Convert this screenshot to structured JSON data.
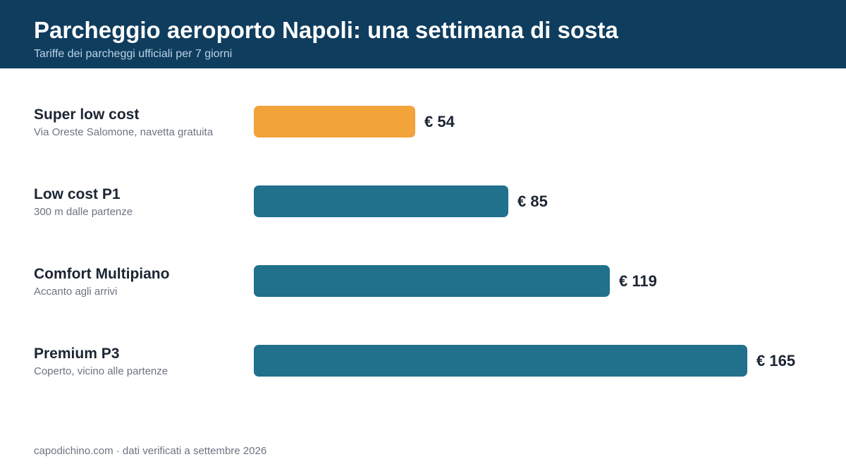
{
  "title": "Parcheggio aeroporto Napoli: una settimana di sosta",
  "subtitle": "Tariffe dei parcheggi ufficiali per 7 giorni",
  "footer": "capodichino.com · dati verificati a settembre 2026",
  "colors": {
    "header_bg": "#0f3d5e",
    "highlight_bar": "#f2a33a",
    "default_bar": "#21708c"
  },
  "chart_data": {
    "type": "bar",
    "orientation": "horizontal",
    "title": "Parcheggio aeroporto Napoli: una settimana di sosta",
    "subtitle": "Tariffe dei parcheggi ufficiali per 7 giorni",
    "xlabel": "",
    "ylabel": "",
    "grid": false,
    "xlim": [
      0,
      165
    ],
    "categories": [
      "Super low cost",
      "Low cost P1",
      "Comfort Multipiano",
      "Premium P3"
    ],
    "descriptions": [
      "Via Oreste Salomone, navetta gratuita",
      "300 m dalle partenze",
      "Accanto agli arrivi",
      "Coperto, vicino alle partenze"
    ],
    "values": [
      54,
      85,
      119,
      165
    ],
    "value_labels": [
      "€ 54",
      "€ 85",
      "€ 119",
      "€ 165"
    ],
    "highlight_index": 0
  }
}
